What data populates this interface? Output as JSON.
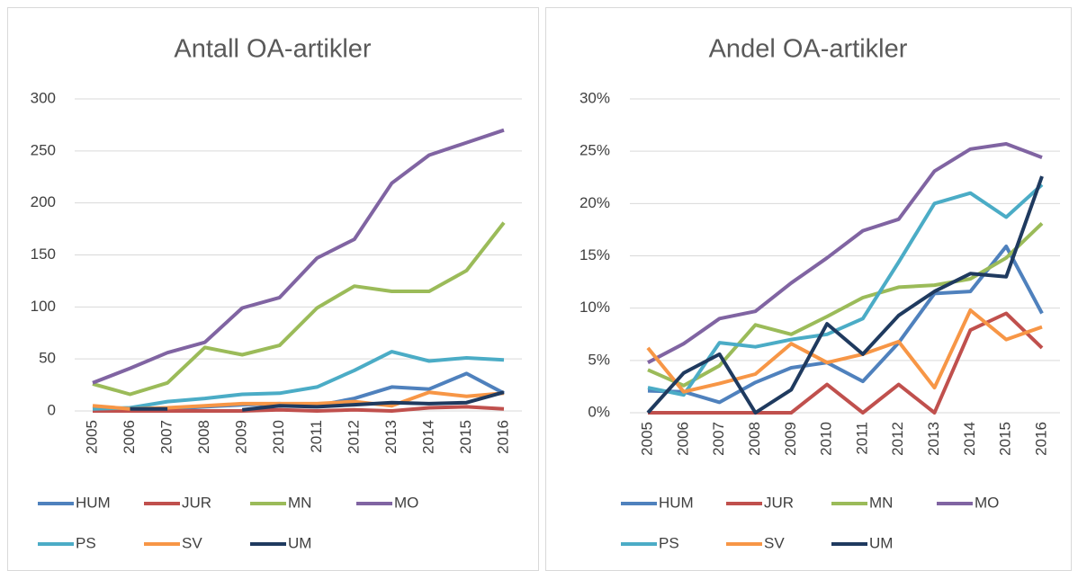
{
  "chart_data": [
    {
      "type": "line",
      "title": "Antall OA-artikler",
      "categories": [
        "2005",
        "2006",
        "2007",
        "2008",
        "2009",
        "2010",
        "2011",
        "2012",
        "2013",
        "2014",
        "2015",
        "2016"
      ],
      "ylim": [
        0,
        300
      ],
      "yticks": [
        0,
        50,
        100,
        150,
        200,
        250,
        300
      ],
      "grid": true,
      "legend": "bottom",
      "series": [
        {
          "name": "HUM",
          "color": "#4f81bd",
          "values": [
            1,
            1,
            2,
            4,
            6,
            7,
            5,
            12,
            23,
            21,
            36,
            17
          ]
        },
        {
          "name": "JUR",
          "color": "#c0504d",
          "values": [
            0,
            0,
            0,
            0,
            0,
            1,
            0,
            1,
            0,
            3,
            4,
            2
          ]
        },
        {
          "name": "MN",
          "color": "#9bbb59",
          "values": [
            26,
            16,
            27,
            61,
            54,
            63,
            99,
            120,
            115,
            115,
            135,
            181
          ]
        },
        {
          "name": "MO",
          "color": "#8064a2",
          "values": [
            27,
            41,
            56,
            66,
            99,
            109,
            147,
            165,
            219,
            246,
            258,
            270
          ]
        },
        {
          "name": "PS",
          "color": "#4bacc6",
          "values": [
            2,
            3,
            9,
            12,
            16,
            17,
            23,
            39,
            57,
            48,
            51,
            49
          ]
        },
        {
          "name": "SV",
          "color": "#f79646",
          "values": [
            5,
            2,
            3,
            5,
            7,
            7,
            7,
            9,
            5,
            18,
            14,
            17
          ]
        },
        {
          "name": "UM",
          "color": "#1f3a5f",
          "values": [
            null,
            2,
            2,
            null,
            1,
            5,
            4,
            6,
            8,
            7,
            8,
            18
          ]
        }
      ]
    },
    {
      "type": "line",
      "title": "Andel OA-artikler",
      "categories": [
        "2005",
        "2006",
        "2007",
        "2008",
        "2009",
        "2010",
        "2011",
        "2012",
        "2013",
        "2014",
        "2015",
        "2016"
      ],
      "ylim": [
        0,
        30
      ],
      "yticks": [
        {
          "value": 0,
          "label": "0%"
        },
        {
          "value": 5,
          "label": "5%"
        },
        {
          "value": 10,
          "label": "10%"
        },
        {
          "value": 15,
          "label": "15%"
        },
        {
          "value": 20,
          "label": "20%"
        },
        {
          "value": 25,
          "label": "25%"
        },
        {
          "value": 30,
          "label": "30%"
        }
      ],
      "grid": true,
      "legend": "bottom",
      "series": [
        {
          "name": "HUM",
          "color": "#4f81bd",
          "values": [
            2.1,
            2.0,
            1.0,
            2.9,
            4.3,
            4.8,
            3.0,
            6.7,
            11.4,
            11.6,
            15.9,
            9.5
          ]
        },
        {
          "name": "JUR",
          "color": "#c0504d",
          "values": [
            0,
            0,
            0,
            0,
            0,
            2.7,
            0,
            2.7,
            0,
            7.9,
            9.5,
            6.2
          ]
        },
        {
          "name": "MN",
          "color": "#9bbb59",
          "values": [
            4.1,
            2.6,
            4.5,
            8.4,
            7.5,
            9.2,
            11.0,
            12.0,
            12.2,
            12.8,
            14.8,
            18.1
          ]
        },
        {
          "name": "MO",
          "color": "#8064a2",
          "values": [
            4.8,
            6.6,
            9.0,
            9.7,
            12.4,
            14.8,
            17.4,
            18.5,
            23.1,
            25.2,
            25.7,
            24.4
          ]
        },
        {
          "name": "PS",
          "color": "#4bacc6",
          "values": [
            2.4,
            1.7,
            6.7,
            6.3,
            7.0,
            7.5,
            9.0,
            14.4,
            20.0,
            21.0,
            18.7,
            21.8
          ]
        },
        {
          "name": "SV",
          "color": "#f79646",
          "values": [
            6.2,
            2.0,
            2.8,
            3.7,
            6.6,
            4.8,
            5.6,
            6.8,
            2.4,
            9.8,
            7.0,
            8.2
          ]
        },
        {
          "name": "UM",
          "color": "#1f3a5f",
          "values": [
            0,
            3.8,
            5.6,
            0,
            2.2,
            8.5,
            5.6,
            9.3,
            11.6,
            13.3,
            13.0,
            22.6
          ]
        }
      ]
    }
  ]
}
